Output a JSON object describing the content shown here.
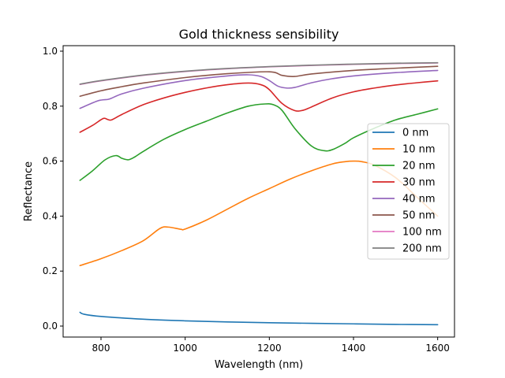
{
  "chart_data": {
    "type": "line",
    "title": "Gold thickness sensibility",
    "xlabel": "Wavelength (nm)",
    "ylabel": "Reflectance",
    "xlim": [
      710,
      1640
    ],
    "ylim": [
      -0.04,
      1.02
    ],
    "xticks": [
      800,
      1000,
      1200,
      1400,
      1600
    ],
    "xtick_labels": [
      "800",
      "1000",
      "1200",
      "1400",
      "1600"
    ],
    "yticks": [
      0.0,
      0.2,
      0.4,
      0.6,
      0.8,
      1.0
    ],
    "ytick_labels": [
      "0.0",
      "0.2",
      "0.4",
      "0.6",
      "0.8",
      "1.0"
    ],
    "grid": false,
    "legend_position": "center-right",
    "series": [
      {
        "name": "0 nm",
        "color": "#1f77b4",
        "x": [
          750,
          760,
          800,
          900,
          1000,
          1100,
          1200,
          1300,
          1400,
          1500,
          1600
        ],
        "y": [
          0.05,
          0.043,
          0.035,
          0.025,
          0.019,
          0.015,
          0.012,
          0.01,
          0.008,
          0.006,
          0.005
        ]
      },
      {
        "name": "10 nm",
        "color": "#ff7f0e",
        "x": [
          750,
          800,
          850,
          900,
          940,
          960,
          990,
          1000,
          1050,
          1100,
          1150,
          1200,
          1250,
          1300,
          1350,
          1380,
          1400,
          1420,
          1450,
          1500,
          1550,
          1600
        ],
        "y": [
          0.22,
          0.245,
          0.275,
          0.31,
          0.355,
          0.36,
          0.352,
          0.353,
          0.385,
          0.425,
          0.465,
          0.5,
          0.535,
          0.565,
          0.59,
          0.598,
          0.6,
          0.598,
          0.585,
          0.54,
          0.47,
          0.4
        ]
      },
      {
        "name": "20 nm",
        "color": "#2ca02c",
        "x": [
          750,
          780,
          810,
          835,
          850,
          865,
          880,
          900,
          950,
          1000,
          1050,
          1100,
          1150,
          1190,
          1210,
          1230,
          1260,
          1300,
          1330,
          1350,
          1380,
          1400,
          1450,
          1500,
          1550,
          1600
        ],
        "y": [
          0.53,
          0.565,
          0.605,
          0.62,
          0.61,
          0.605,
          0.615,
          0.635,
          0.68,
          0.715,
          0.745,
          0.775,
          0.8,
          0.808,
          0.805,
          0.785,
          0.72,
          0.655,
          0.638,
          0.642,
          0.665,
          0.685,
          0.72,
          0.75,
          0.77,
          0.79
        ]
      },
      {
        "name": "30 nm",
        "color": "#d62728",
        "x": [
          750,
          780,
          805,
          815,
          825,
          850,
          900,
          950,
          1000,
          1050,
          1100,
          1150,
          1180,
          1200,
          1230,
          1260,
          1280,
          1300,
          1350,
          1400,
          1450,
          1500,
          1550,
          1600
        ],
        "y": [
          0.705,
          0.73,
          0.755,
          0.752,
          0.75,
          0.77,
          0.805,
          0.83,
          0.85,
          0.866,
          0.878,
          0.884,
          0.878,
          0.86,
          0.81,
          0.784,
          0.785,
          0.797,
          0.83,
          0.852,
          0.866,
          0.877,
          0.885,
          0.892
        ]
      },
      {
        "name": "40 nm",
        "color": "#9467bd",
        "x": [
          750,
          790,
          805,
          820,
          850,
          900,
          1000,
          1100,
          1150,
          1180,
          1200,
          1220,
          1240,
          1260,
          1300,
          1350,
          1400,
          1500,
          1600
        ],
        "y": [
          0.792,
          0.818,
          0.823,
          0.826,
          0.845,
          0.865,
          0.893,
          0.91,
          0.914,
          0.908,
          0.893,
          0.873,
          0.866,
          0.868,
          0.885,
          0.9,
          0.91,
          0.922,
          0.93
        ]
      },
      {
        "name": "50 nm",
        "color": "#8c564b",
        "x": [
          750,
          800,
          850,
          900,
          1000,
          1100,
          1200,
          1230,
          1260,
          1300,
          1400,
          1500,
          1600
        ],
        "y": [
          0.836,
          0.856,
          0.871,
          0.884,
          0.904,
          0.918,
          0.925,
          0.912,
          0.908,
          0.917,
          0.93,
          0.938,
          0.945
        ]
      },
      {
        "name": "100 nm",
        "color": "#e377c2",
        "x": [
          750,
          800,
          900,
          1000,
          1100,
          1200,
          1300,
          1400,
          1500,
          1600
        ],
        "y": [
          0.879,
          0.892,
          0.912,
          0.926,
          0.936,
          0.943,
          0.948,
          0.952,
          0.955,
          0.957
        ]
      },
      {
        "name": "200 nm",
        "color": "#7f7f7f",
        "x": [
          750,
          800,
          900,
          1000,
          1100,
          1200,
          1300,
          1400,
          1500,
          1600
        ],
        "y": [
          0.88,
          0.893,
          0.913,
          0.927,
          0.937,
          0.944,
          0.949,
          0.953,
          0.956,
          0.958
        ]
      }
    ]
  }
}
